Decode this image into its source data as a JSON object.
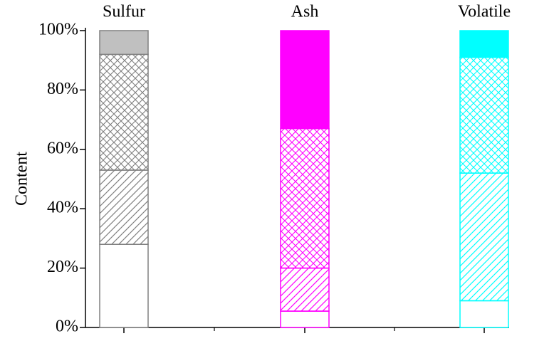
{
  "chart_data": {
    "type": "stacked-bar",
    "y_label": "Content",
    "categories": [
      "Sulfur",
      "Ash",
      "Volatile"
    ],
    "colors": [
      "#808080",
      "#ff00ff",
      "#00ffff"
    ],
    "solid_colors": [
      "#c0c0c0",
      "#ff00ff",
      "#00ffff"
    ],
    "series": [
      {
        "pattern": "none",
        "values": [
          28,
          5.5,
          9
        ]
      },
      {
        "pattern": "diagonal",
        "values": [
          25,
          14.5,
          43
        ]
      },
      {
        "pattern": "crosshatch",
        "values": [
          39,
          47,
          39
        ]
      },
      {
        "pattern": "solid",
        "values": [
          8,
          33,
          9
        ]
      }
    ],
    "ylim": [
      0,
      100
    ],
    "yticks": [
      {
        "value": 0,
        "label": "0%"
      },
      {
        "value": 20,
        "label": "20%"
      },
      {
        "value": 40,
        "label": "40%"
      },
      {
        "value": 60,
        "label": "60%"
      },
      {
        "value": 80,
        "label": "80%"
      },
      {
        "value": 100,
        "label": "100%"
      }
    ]
  }
}
